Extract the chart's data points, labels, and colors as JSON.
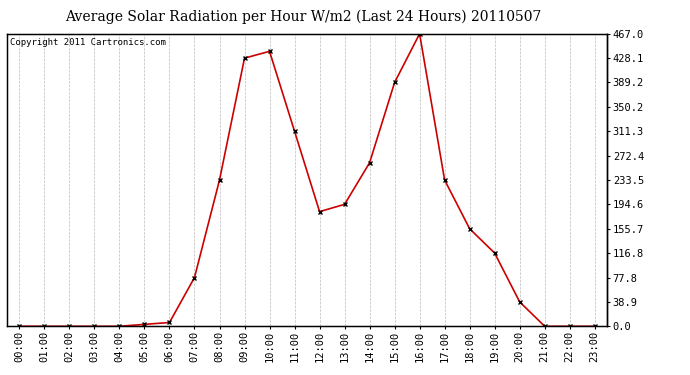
{
  "title": "Average Solar Radiation per Hour W/m2 (Last 24 Hours) 20110507",
  "copyright": "Copyright 2011 Cartronics.com",
  "hours": [
    "00:00",
    "01:00",
    "02:00",
    "03:00",
    "04:00",
    "05:00",
    "06:00",
    "07:00",
    "08:00",
    "09:00",
    "10:00",
    "11:00",
    "12:00",
    "13:00",
    "14:00",
    "15:00",
    "16:00",
    "17:00",
    "18:00",
    "19:00",
    "20:00",
    "21:00",
    "22:00",
    "23:00"
  ],
  "values": [
    0.0,
    0.0,
    0.0,
    0.0,
    0.0,
    3.0,
    6.0,
    77.8,
    233.5,
    428.1,
    438.9,
    311.3,
    183.0,
    194.6,
    261.0,
    389.2,
    467.0,
    233.5,
    155.7,
    116.8,
    38.9,
    0.0,
    0.0,
    0.0
  ],
  "y_ticks": [
    0.0,
    38.9,
    77.8,
    116.8,
    155.7,
    194.6,
    233.5,
    272.4,
    311.3,
    350.2,
    389.2,
    428.1,
    467.0
  ],
  "ymax": 467.0,
  "ymin": 0.0,
  "line_color": "#cc0000",
  "marker": "x",
  "marker_color": "#000000",
  "background_color": "#ffffff",
  "plot_bg_color": "#ffffff",
  "grid_color": "#bbbbbb",
  "title_fontsize": 10,
  "copyright_fontsize": 6.5,
  "tick_fontsize": 7.5
}
